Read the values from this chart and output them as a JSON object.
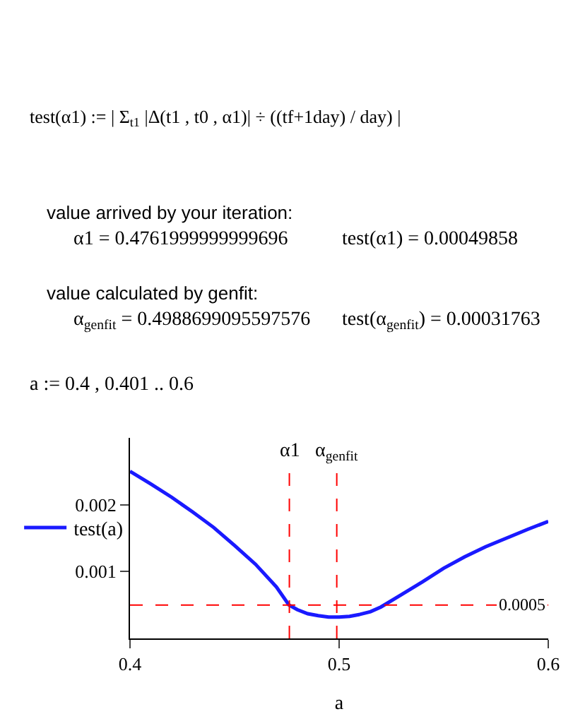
{
  "chart_data": {
    "type": "line",
    "xlabel": "a",
    "xlim": [
      0.4,
      0.6
    ],
    "xticks": [
      0.4,
      0.5,
      0.6
    ],
    "ylim": [
      0,
      0.003
    ],
    "yticks": [
      0.001,
      0.002
    ],
    "series": [
      {
        "name": "test(a)",
        "color": "#1a1aff",
        "x": [
          0.4,
          0.41,
          0.42,
          0.43,
          0.44,
          0.45,
          0.46,
          0.47,
          0.476,
          0.48,
          0.485,
          0.49,
          0.495,
          0.5,
          0.505,
          0.51,
          0.515,
          0.52,
          0.53,
          0.54,
          0.55,
          0.56,
          0.57,
          0.58,
          0.59,
          0.6
        ],
        "values": [
          0.0025,
          0.00231,
          0.00211,
          0.00189,
          0.00166,
          0.00139,
          0.00111,
          0.00077,
          0.0005,
          0.00043,
          0.00037,
          0.00034,
          0.00032,
          0.00032,
          0.00033,
          0.00036,
          0.0004,
          0.00047,
          0.00066,
          0.00085,
          0.00105,
          0.00122,
          0.00137,
          0.0015,
          0.00163,
          0.00175
        ]
      }
    ],
    "ref_lines": [
      {
        "axis": "x",
        "value": 0.4762,
        "label": "α1",
        "color": "#ff0000",
        "line_style": "dashed"
      },
      {
        "axis": "x",
        "value": 0.49887,
        "label": "α$_{genfit}$",
        "color": "#ff0000",
        "line_style": "dashed"
      },
      {
        "axis": "y",
        "value": 0.0005,
        "label": "0.0005",
        "color": "#ff0000",
        "line_style": "dashed"
      }
    ],
    "annotations": [
      "test(α1) := | Σ$_{t1}$ |Δ(t1 , t0 , α1)| ÷ ((tf+1day) / day) |",
      "value arrived by your iteration:",
      "α1 = 0.4761999999999696",
      "test(α1) = 0.00049858",
      "value calculated by genfit:",
      "α$_{genfit}$ = 0.4988699095597576",
      "test(α$_{genfit}$) = 0.00031763",
      "a := 0.4 , 0.401 .. 0.6"
    ],
    "legend": "left",
    "marker": "none",
    "line_style": "solid"
  }
}
